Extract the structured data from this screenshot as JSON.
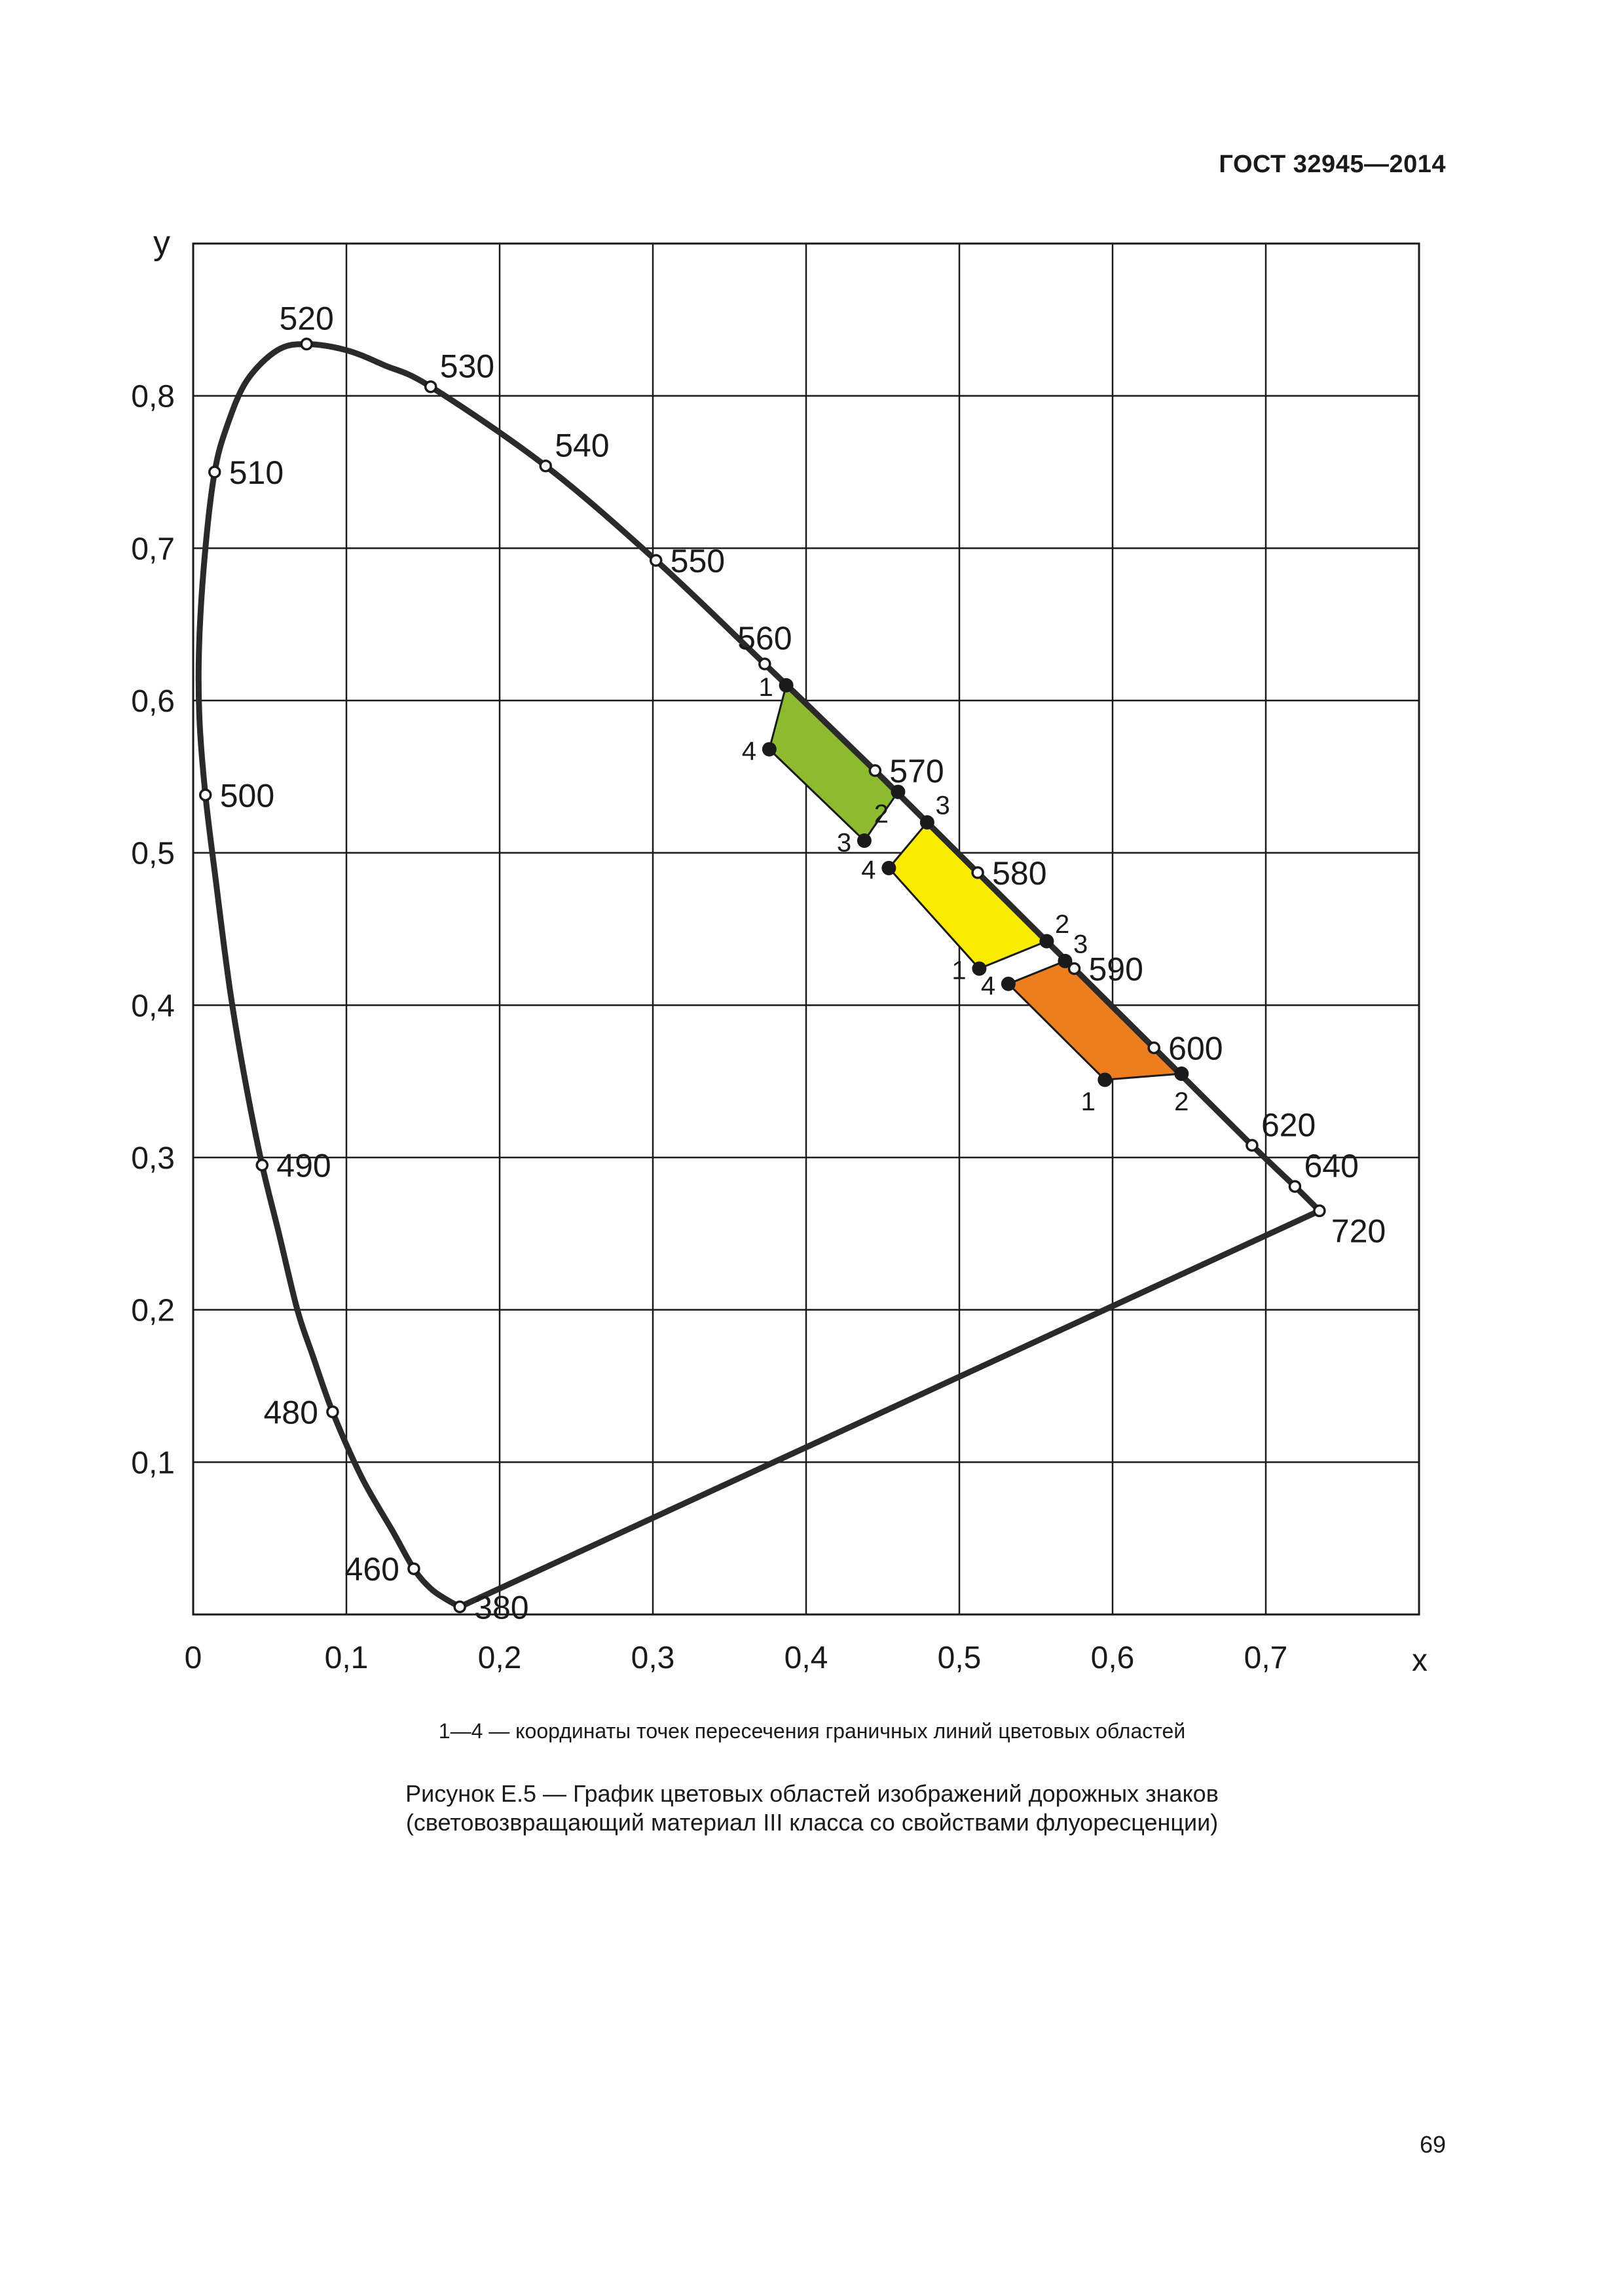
{
  "header": {
    "standard": "ГОСТ 32945—2014"
  },
  "chart_data": {
    "type": "scatter",
    "title": "",
    "xlabel": "x",
    "ylabel": "y",
    "xlim": [
      0,
      0.8
    ],
    "ylim": [
      0,
      0.9
    ],
    "grid": true,
    "x_ticks": [
      {
        "value": 0,
        "label": "0"
      },
      {
        "value": 0.1,
        "label": "0,1"
      },
      {
        "value": 0.2,
        "label": "0,2"
      },
      {
        "value": 0.3,
        "label": "0,3"
      },
      {
        "value": 0.4,
        "label": "0,4"
      },
      {
        "value": 0.5,
        "label": "0,5"
      },
      {
        "value": 0.6,
        "label": "0,6"
      },
      {
        "value": 0.7,
        "label": "0,7"
      }
    ],
    "y_ticks": [
      {
        "value": 0.1,
        "label": "0,1"
      },
      {
        "value": 0.2,
        "label": "0,2"
      },
      {
        "value": 0.3,
        "label": "0,3"
      },
      {
        "value": 0.4,
        "label": "0,4"
      },
      {
        "value": 0.5,
        "label": "0,5"
      },
      {
        "value": 0.6,
        "label": "0,6"
      },
      {
        "value": 0.7,
        "label": "0,7"
      },
      {
        "value": 0.8,
        "label": "0,8"
      }
    ],
    "spectral_locus_curve": [
      [
        0.174,
        0.005
      ],
      [
        0.165,
        0.01
      ],
      [
        0.155,
        0.017
      ],
      [
        0.144,
        0.03
      ],
      [
        0.13,
        0.055
      ],
      [
        0.11,
        0.09
      ],
      [
        0.091,
        0.133
      ],
      [
        0.078,
        0.17
      ],
      [
        0.068,
        0.2
      ],
      [
        0.056,
        0.25
      ],
      [
        0.045,
        0.295
      ],
      [
        0.034,
        0.35
      ],
      [
        0.024,
        0.41
      ],
      [
        0.015,
        0.48
      ],
      [
        0.008,
        0.538
      ],
      [
        0.004,
        0.59
      ],
      [
        0.004,
        0.64
      ],
      [
        0.008,
        0.7
      ],
      [
        0.014,
        0.75
      ],
      [
        0.022,
        0.78
      ],
      [
        0.035,
        0.81
      ],
      [
        0.055,
        0.83
      ],
      [
        0.074,
        0.834
      ],
      [
        0.1,
        0.83
      ],
      [
        0.125,
        0.82
      ],
      [
        0.155,
        0.806
      ],
      [
        0.23,
        0.754
      ],
      [
        0.302,
        0.692
      ],
      [
        0.373,
        0.624
      ],
      [
        0.445,
        0.554
      ],
      [
        0.512,
        0.487
      ],
      [
        0.575,
        0.424
      ],
      [
        0.627,
        0.372
      ],
      [
        0.691,
        0.308
      ],
      [
        0.719,
        0.281
      ],
      [
        0.735,
        0.265
      ]
    ],
    "purple_line": [
      [
        0.735,
        0.265
      ],
      [
        0.174,
        0.005
      ]
    ],
    "wavelength_points": [
      {
        "label": "380",
        "x": 0.174,
        "y": 0.005,
        "label_pos": "right"
      },
      {
        "label": "460",
        "x": 0.144,
        "y": 0.03,
        "label_pos": "left"
      },
      {
        "label": "480",
        "x": 0.091,
        "y": 0.133,
        "label_pos": "left"
      },
      {
        "label": "490",
        "x": 0.045,
        "y": 0.295,
        "label_pos": "right"
      },
      {
        "label": "500",
        "x": 0.008,
        "y": 0.538,
        "label_pos": "right"
      },
      {
        "label": "510",
        "x": 0.014,
        "y": 0.75,
        "label_pos": "right"
      },
      {
        "label": "520",
        "x": 0.074,
        "y": 0.834,
        "label_pos": "above"
      },
      {
        "label": "530",
        "x": 0.155,
        "y": 0.806,
        "label_pos": "above-right"
      },
      {
        "label": "540",
        "x": 0.23,
        "y": 0.754,
        "label_pos": "above-right"
      },
      {
        "label": "550",
        "x": 0.302,
        "y": 0.692,
        "label_pos": "right"
      },
      {
        "label": "560",
        "x": 0.373,
        "y": 0.624,
        "label_pos": "above"
      },
      {
        "label": "570",
        "x": 0.445,
        "y": 0.554,
        "label_pos": "right"
      },
      {
        "label": "580",
        "x": 0.512,
        "y": 0.487,
        "label_pos": "right"
      },
      {
        "label": "590",
        "x": 0.575,
        "y": 0.424,
        "label_pos": "right"
      },
      {
        "label": "600",
        "x": 0.627,
        "y": 0.372,
        "label_pos": "right"
      },
      {
        "label": "620",
        "x": 0.691,
        "y": 0.308,
        "label_pos": "above-right"
      },
      {
        "label": "640",
        "x": 0.719,
        "y": 0.281,
        "label_pos": "above-right"
      },
      {
        "label": "720",
        "x": 0.735,
        "y": 0.265,
        "label_pos": "below-right"
      }
    ],
    "regions": [
      {
        "color": "#8cbb2f",
        "points": [
          {
            "label": "1",
            "x": 0.387,
            "y": 0.61,
            "label_pos": "left"
          },
          {
            "label": "2",
            "x": 0.46,
            "y": 0.54,
            "label_pos": "below-left"
          },
          {
            "label": "3",
            "x": 0.438,
            "y": 0.508,
            "label_pos": "left"
          },
          {
            "label": "4",
            "x": 0.376,
            "y": 0.568,
            "label_pos": "left"
          }
        ]
      },
      {
        "color": "#f9ec00",
        "points": [
          {
            "label": "1",
            "x": 0.513,
            "y": 0.424,
            "label_pos": "left"
          },
          {
            "label": "2",
            "x": 0.557,
            "y": 0.442,
            "label_pos": "above-right"
          },
          {
            "label": "3",
            "x": 0.479,
            "y": 0.52,
            "label_pos": "above-right"
          },
          {
            "label": "4",
            "x": 0.454,
            "y": 0.49,
            "label_pos": "left"
          }
        ]
      },
      {
        "color": "#ee7d1f",
        "points": [
          {
            "label": "1",
            "x": 0.595,
            "y": 0.351,
            "label_pos": "below-left"
          },
          {
            "label": "2",
            "x": 0.645,
            "y": 0.355,
            "label_pos": "below"
          },
          {
            "label": "3",
            "x": 0.569,
            "y": 0.429,
            "label_pos": "above-right"
          },
          {
            "label": "4",
            "x": 0.532,
            "y": 0.414,
            "label_pos": "left"
          }
        ]
      }
    ]
  },
  "note": "1—4 — координаты точек пересечения граничных линий цветовых областей",
  "caption": {
    "line1": "Рисунок Е.5 — График цветовых областей изображений дорожных знаков",
    "line2": "(световозвращающий материал III класса со свойствами флуоресценции)"
  },
  "page_number": "69"
}
